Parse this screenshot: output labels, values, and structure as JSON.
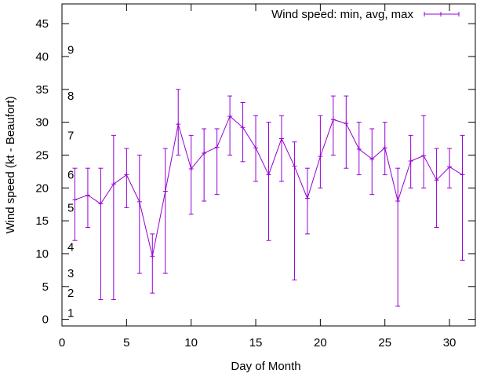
{
  "chart_data": {
    "type": "line",
    "xlabel": "Day of Month",
    "ylabel": "Wind speed (kt - Beaufort)",
    "xlim": [
      0,
      32
    ],
    "ylim": [
      -1,
      48
    ],
    "xticks": [
      "0",
      "5",
      "10",
      "15",
      "20",
      "25",
      "30"
    ],
    "yticks": [
      "0",
      "5",
      "10",
      "15",
      "20",
      "25",
      "30",
      "35",
      "40",
      "45"
    ],
    "grid": false,
    "legend_position": "top-right",
    "series_color": "#9400d3",
    "series": [
      {
        "name": "Wind speed: min, avg, max",
        "x": [
          1,
          2,
          3,
          4,
          5,
          6,
          7,
          8,
          9,
          10,
          11,
          12,
          13,
          14,
          15,
          16,
          17,
          18,
          19,
          20,
          21,
          22,
          23,
          24,
          25,
          26,
          27,
          28,
          29,
          30,
          31
        ],
        "avg": [
          18.2,
          18.9,
          17.6,
          20.6,
          22.0,
          17.9,
          9.6,
          19.5,
          29.7,
          22.9,
          25.3,
          26.2,
          30.9,
          29.2,
          26.1,
          22.0,
          27.5,
          23.3,
          18.4,
          24.8,
          30.4,
          29.8,
          25.9,
          24.4,
          26.1,
          18.0,
          24.1,
          24.9,
          21.2,
          23.2,
          22.0
        ],
        "min": [
          12,
          14,
          3,
          3,
          17,
          7,
          4,
          7,
          25,
          16,
          18,
          19,
          25,
          24,
          21,
          12,
          21,
          6,
          13,
          20,
          25,
          23,
          22,
          19,
          22,
          2,
          20,
          20,
          14,
          20,
          9
        ],
        "max": [
          23,
          23,
          23,
          28,
          26,
          25,
          13,
          26,
          35,
          28,
          29,
          29,
          34,
          33,
          31,
          30,
          31,
          27,
          23,
          31,
          34,
          34,
          30,
          29,
          30,
          23,
          28,
          31,
          26,
          26,
          28
        ]
      }
    ],
    "beaufort_labels": [
      {
        "label": "1",
        "y": 1
      },
      {
        "label": "2",
        "y": 4
      },
      {
        "label": "3",
        "y": 7
      },
      {
        "label": "4",
        "y": 11
      },
      {
        "label": "5",
        "y": 17
      },
      {
        "label": "6",
        "y": 22
      },
      {
        "label": "7",
        "y": 28
      },
      {
        "label": "8",
        "y": 34
      },
      {
        "label": "9",
        "y": 41
      }
    ]
  }
}
